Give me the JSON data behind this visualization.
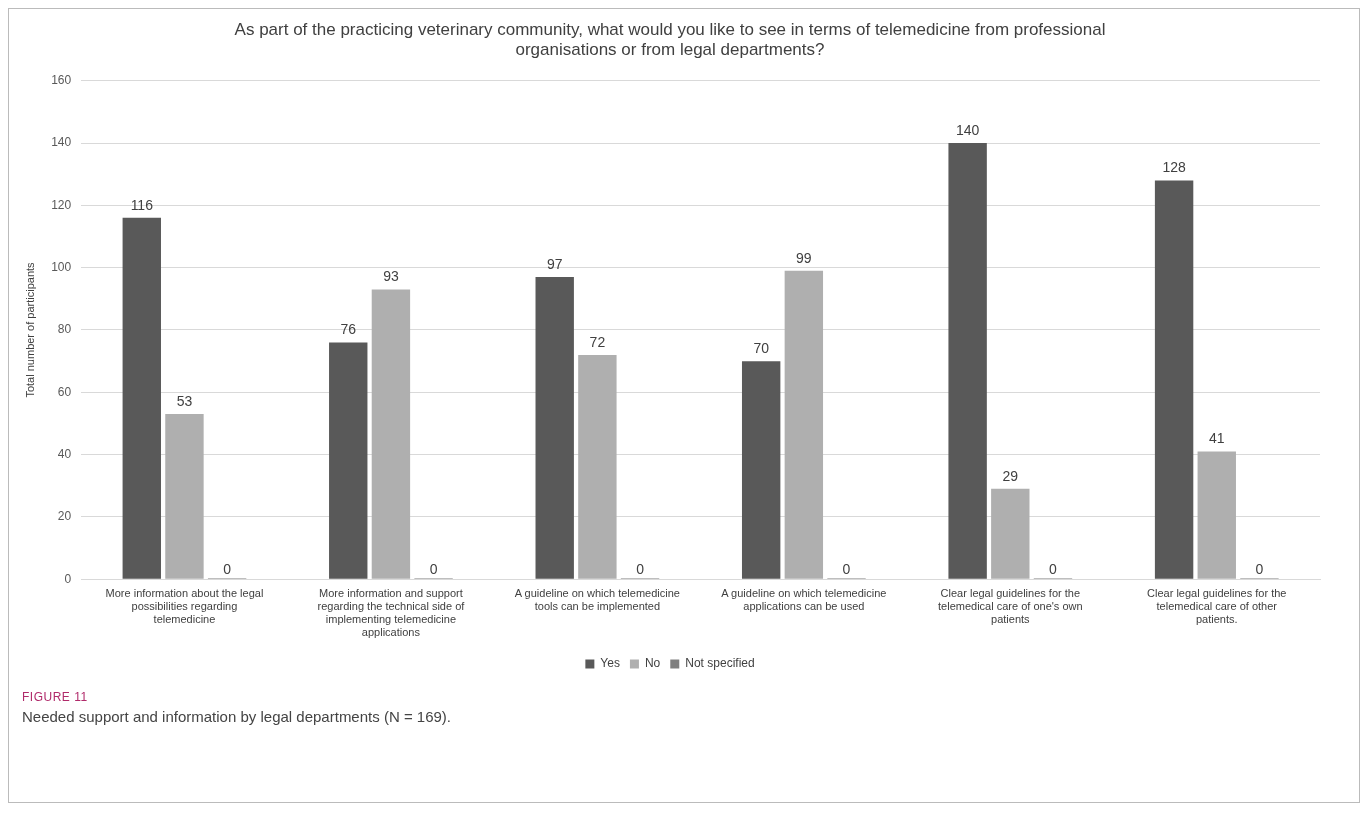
{
  "chart_data": {
    "type": "bar",
    "title": "As part of the practicing veterinary community, what would you like to see in terms of telemedicine from professional organisations or from legal departments?",
    "ylabel": "Total number of participants",
    "categories": [
      "More information about the legal possibilities regarding telemedicine",
      "More information and support regarding the technical side of implementing telemedicine applications",
      "A guideline on which telemedicine tools can be implemented",
      "A guideline on which telemedicine applications can be used",
      "Clear legal guidelines for the telemedical care of one's own patients",
      "Clear legal guidelines for the telemedical care of other patients."
    ],
    "series": [
      {
        "name": "Yes",
        "color": "#595959",
        "values": [
          116,
          76,
          97,
          70,
          140,
          128
        ]
      },
      {
        "name": "No",
        "color": "#afafaf",
        "values": [
          53,
          93,
          72,
          99,
          29,
          41
        ]
      },
      {
        "name": "Not specified",
        "color": "#7f7f7f",
        "values": [
          0,
          0,
          0,
          0,
          0,
          0
        ]
      }
    ],
    "ylim": [
      0,
      160
    ],
    "yticks": [
      0,
      20,
      40,
      60,
      80,
      100,
      120,
      140,
      160
    ],
    "grid": "y",
    "legend": "bottom",
    "data_labels": true,
    "annotations": [
      "FIGURE 11",
      "Needed support and information by legal departments (N = 169)."
    ]
  }
}
